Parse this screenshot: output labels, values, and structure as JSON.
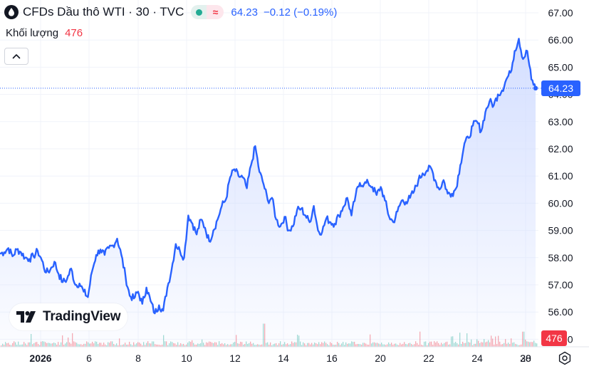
{
  "legend": {
    "symbol_title": "CFDs Dầu thô WTI · 30 · TVC",
    "last_price": "64.23",
    "change": "−0.12 (−0.19%)",
    "volume_label": "Khối lượng",
    "volume_value": "476"
  },
  "colors": {
    "line": "#2962ff",
    "area_top": "#dbe4ff",
    "up": "#22ab94",
    "down": "#f23645",
    "grid": "#f0f3fa"
  },
  "icons": [
    "oil-drop-icon",
    "market-open-dot-icon",
    "wave-icon",
    "chevron-up-icon",
    "tradingview-logo-icon",
    "settings-gear-icon"
  ],
  "chart_data": {
    "type": "line",
    "title": "CFDs Dầu thô WTI · 30 · TVC",
    "xlabel": "",
    "ylabel": "",
    "ylim": [
      55.0,
      67.0
    ],
    "y_ticks": [
      "67.00",
      "66.00",
      "65.00",
      "64.00",
      "63.00",
      "62.00",
      "61.00",
      "60.00",
      "59.00",
      "58.00",
      "57.00",
      "56.00",
      "55.00"
    ],
    "x_ticks": [
      "2026",
      "6",
      "8",
      "10",
      "12",
      "14",
      "16",
      "20",
      "22",
      "24",
      "28",
      "30"
    ],
    "last_price_label": "64.23",
    "volume_label": "476",
    "grid": true,
    "series": [
      {
        "values": [
          58.15,
          58.2,
          58.35,
          58.05,
          58.3,
          58.2,
          58.0,
          57.95,
          58.05,
          58.25,
          57.9,
          57.45,
          57.55,
          57.85,
          57.4,
          57.1,
          57.2,
          57.6,
          57.0,
          57.05,
          56.75,
          56.55,
          57.5,
          58.1,
          58.3,
          58.1,
          58.35,
          58.45,
          58.7,
          58.1,
          57.3,
          56.6,
          56.5,
          56.75,
          56.3,
          56.9,
          56.4,
          55.95,
          56.25,
          56.05,
          56.9,
          57.55,
          58.5,
          58.25,
          58.0,
          59.55,
          59.25,
          58.85,
          59.4,
          59.1,
          58.6,
          59.0,
          59.4,
          59.9,
          60.15,
          60.95,
          61.25,
          61.0,
          60.95,
          60.55,
          61.4,
          62.1,
          61.15,
          60.7,
          60.1,
          60.2,
          59.4,
          59.15,
          59.5,
          59.0,
          59.15,
          59.75,
          59.8,
          59.55,
          59.3,
          59.9,
          59.0,
          58.95,
          59.45,
          59.3,
          59.25,
          59.55,
          59.85,
          60.2,
          59.55,
          60.3,
          60.75,
          60.7,
          60.75,
          60.6,
          60.3,
          60.6,
          60.1,
          59.5,
          59.3,
          59.7,
          60.1,
          60.05,
          60.2,
          60.45,
          60.85,
          61.1,
          61.2,
          61.3,
          60.85,
          60.5,
          60.85,
          60.35,
          60.35,
          60.55,
          61.4,
          62.2,
          62.4,
          62.85,
          63.0,
          62.65,
          63.35,
          63.75,
          63.6,
          64.0,
          64.15,
          64.55,
          64.8,
          65.6,
          66.05,
          65.3,
          65.6,
          64.55,
          64.23
        ]
      }
    ],
    "volume": {
      "max_value": "476"
    }
  }
}
